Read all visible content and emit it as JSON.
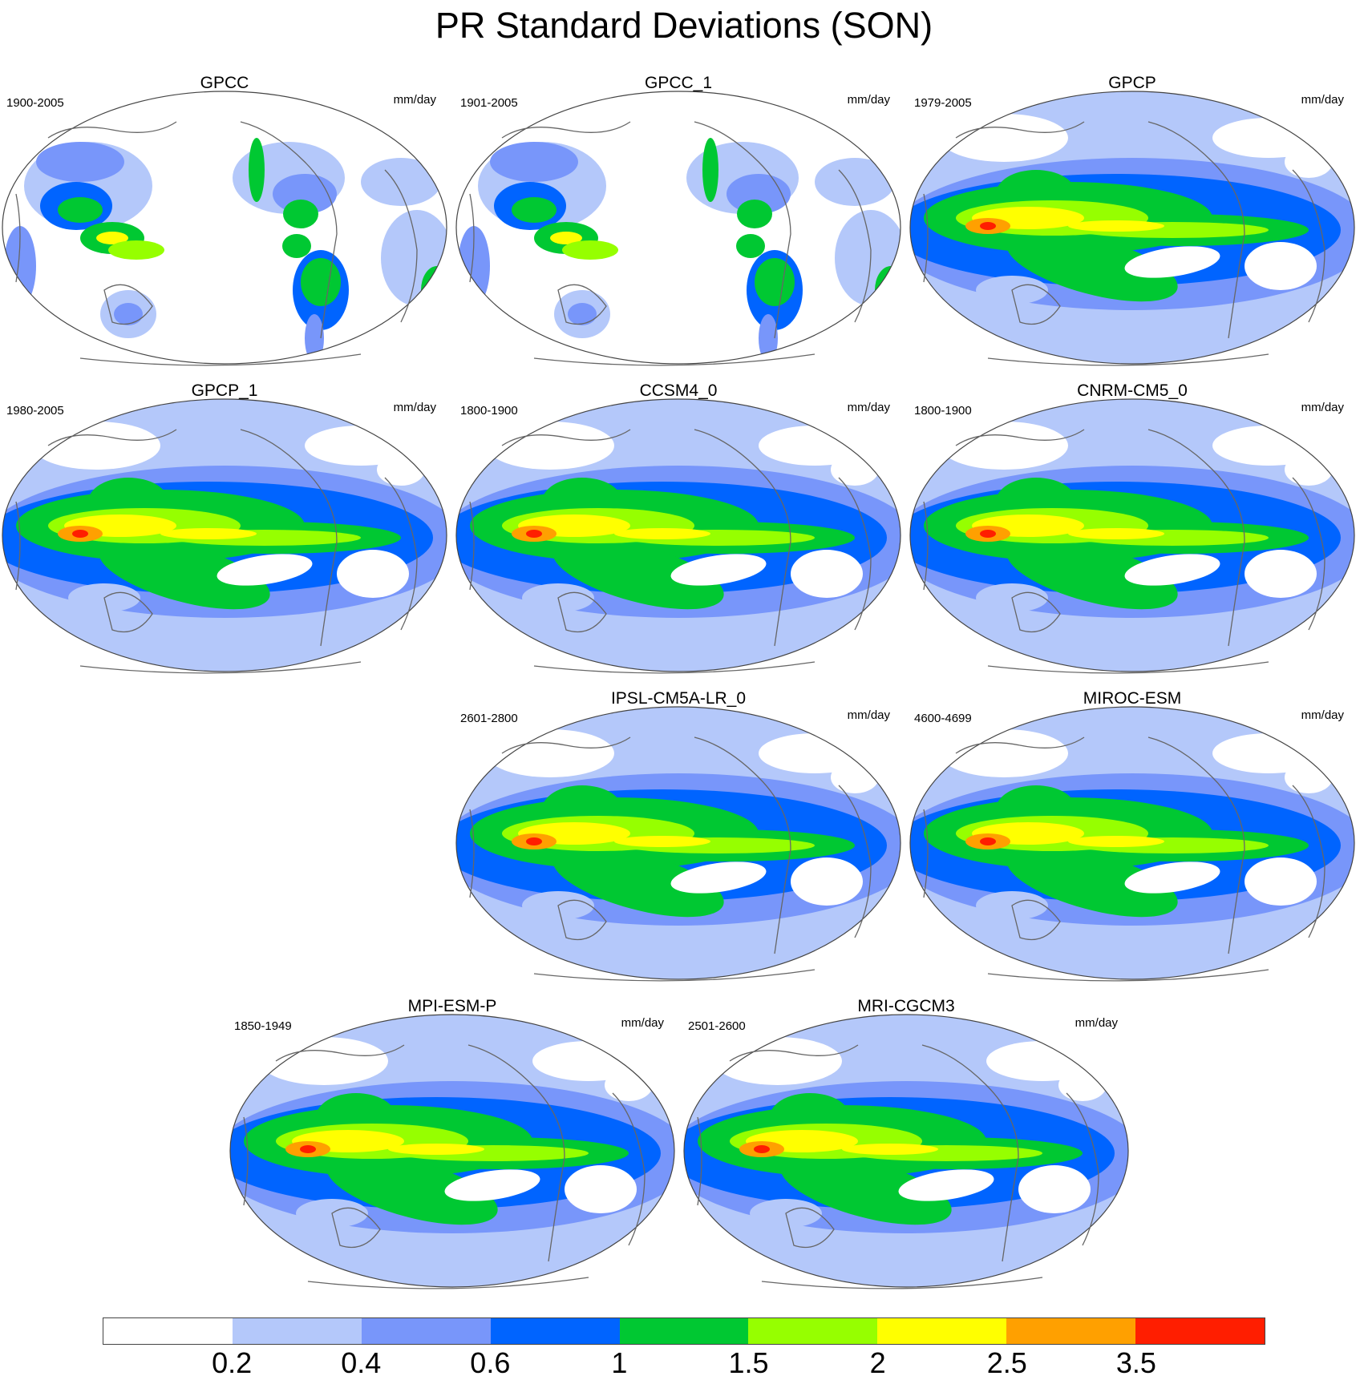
{
  "title": "PR Standard Deviations (SON)",
  "units": "mm/day",
  "panels": [
    {
      "name": "GPCC",
      "years": "1900-2005",
      "style": "gauge"
    },
    {
      "name": "GPCC_1",
      "years": "1901-2005",
      "style": "gauge"
    },
    {
      "name": "GPCP",
      "years": "1979-2005",
      "style": "obs"
    },
    {
      "name": "GPCP_1",
      "years": "1980-2005",
      "style": "obs"
    },
    {
      "name": "CCSM4_0",
      "years": "1800-1900",
      "style": "model"
    },
    {
      "name": "CNRM-CM5_0",
      "years": "1800-1900",
      "style": "model"
    },
    {
      "name": "IPSL-CM5A-LR_0",
      "years": "2601-2800",
      "style": "model"
    },
    {
      "name": "MIROC-ESM",
      "years": "4600-4699",
      "style": "model"
    },
    {
      "name": "MPI-ESM-P",
      "years": "1850-1949",
      "style": "model"
    },
    {
      "name": "MRI-CGCM3",
      "years": "2501-2600",
      "style": "model"
    }
  ],
  "colorbar": {
    "colors": [
      "#ffffff",
      "#b4c8fa",
      "#7896fa",
      "#0064ff",
      "#00c832",
      "#96ff00",
      "#ffff00",
      "#ffa000",
      "#ff1e00"
    ],
    "labels": [
      "0.2",
      "0.4",
      "0.6",
      "1",
      "1.5",
      "2",
      "2.5",
      "3.5"
    ]
  }
}
